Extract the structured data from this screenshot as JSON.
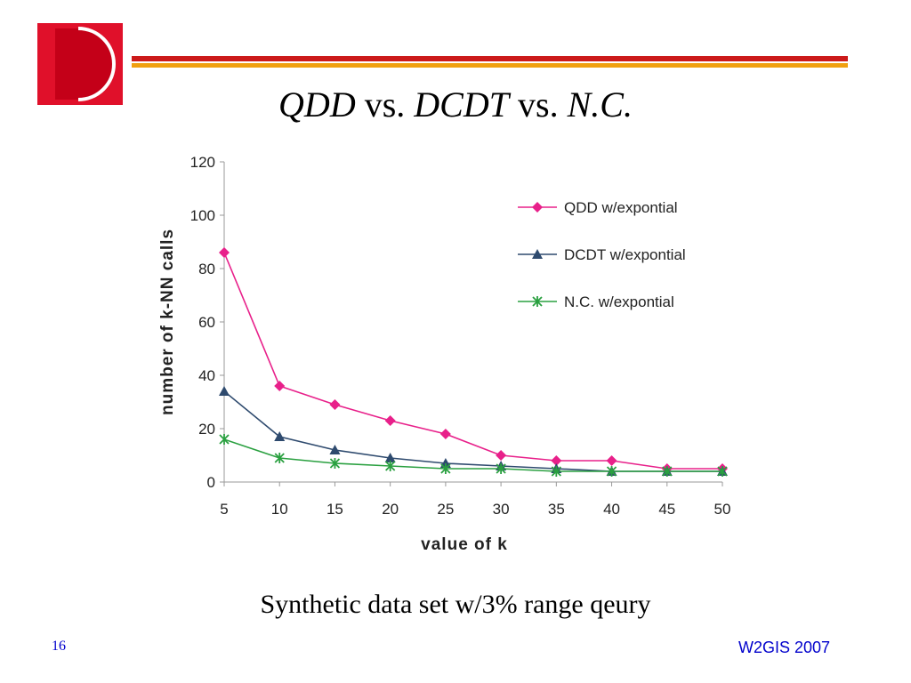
{
  "slide": {
    "title_parts": [
      "QDD",
      " vs. ",
      "DCDT",
      " vs. ",
      "N.C."
    ],
    "caption": "Synthetic data set w/3% range qeury",
    "slide_number": "16",
    "footer": "W2GIS 2007"
  },
  "colors": {
    "logo_red": "#e0102a",
    "logo_dark": "#c40018",
    "rule_red": "#cc1a1a",
    "rule_orange": "#f0a010",
    "footer_blue": "#0000cc"
  },
  "chart_data": {
    "type": "line",
    "x": [
      5,
      10,
      15,
      20,
      25,
      30,
      35,
      40,
      45,
      50
    ],
    "xlabel": "value of k",
    "ylabel": "number of k-NN calls",
    "xticks": [
      "5",
      "10",
      "15",
      "20",
      "25",
      "30",
      "35",
      "40",
      "45",
      "50"
    ],
    "yticks": [
      "0",
      "20",
      "40",
      "60",
      "80",
      "100",
      "120"
    ],
    "ylim": [
      0,
      120
    ],
    "grid": false,
    "legend_position": "top-right",
    "series": [
      {
        "name": "QDD w/expontial",
        "color": "#e8208a",
        "marker": "diamond",
        "values": [
          86,
          36,
          29,
          23,
          18,
          10,
          8,
          8,
          5,
          5
        ]
      },
      {
        "name": "DCDT w/expontial",
        "color": "#2e4a6e",
        "marker": "triangle",
        "values": [
          34,
          17,
          12,
          9,
          7,
          6,
          5,
          4,
          4,
          4
        ]
      },
      {
        "name": "N.C. w/expontial",
        "color": "#2aa040",
        "marker": "asterisk",
        "values": [
          16,
          9,
          7,
          6,
          5,
          5,
          4,
          4,
          4,
          4
        ]
      }
    ]
  }
}
